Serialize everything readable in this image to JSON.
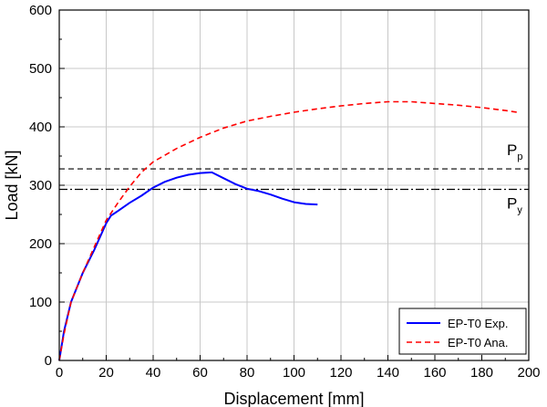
{
  "chart_data": {
    "type": "line",
    "xlabel": "Displacement [mm]",
    "ylabel": "Load [kN]",
    "xlim": [
      0,
      200
    ],
    "ylim": [
      0,
      600
    ],
    "x_ticks": [
      0,
      20,
      40,
      60,
      80,
      100,
      120,
      140,
      160,
      180,
      200
    ],
    "y_ticks": [
      0,
      100,
      200,
      300,
      400,
      500,
      600
    ],
    "grid": true,
    "legend_position": "bottom-right",
    "series": [
      {
        "name": "EP-T0 Exp.",
        "color": "#0000ff",
        "style": "solid",
        "x": [
          0,
          2,
          5,
          10,
          15,
          20,
          22,
          25,
          30,
          35,
          40,
          45,
          50,
          55,
          60,
          65,
          70,
          75,
          80,
          85,
          90,
          95,
          100,
          105,
          110
        ],
        "y": [
          0,
          50,
          100,
          150,
          190,
          235,
          248,
          256,
          270,
          282,
          296,
          306,
          313,
          318,
          321,
          322,
          312,
          302,
          294,
          290,
          284,
          277,
          271,
          268,
          267
        ]
      },
      {
        "name": "EP-T0 Ana.",
        "color": "#ff0000",
        "style": "dashed",
        "x": [
          0,
          2,
          5,
          10,
          15,
          20,
          25,
          30,
          35,
          40,
          50,
          60,
          70,
          80,
          90,
          100,
          110,
          120,
          130,
          140,
          150,
          160,
          170,
          180,
          190,
          195
        ],
        "y": [
          0,
          45,
          100,
          150,
          195,
          240,
          270,
          298,
          322,
          340,
          363,
          382,
          398,
          410,
          418,
          425,
          431,
          436,
          440,
          443,
          443,
          440,
          437,
          433,
          428,
          425
        ]
      }
    ],
    "reference_lines": [
      {
        "label_main": "P",
        "label_sub": "p",
        "y": 328,
        "style": "dashed",
        "color": "#000000"
      },
      {
        "label_main": "P",
        "label_sub": "y",
        "y": 293,
        "style": "dashdot",
        "color": "#000000"
      }
    ]
  }
}
